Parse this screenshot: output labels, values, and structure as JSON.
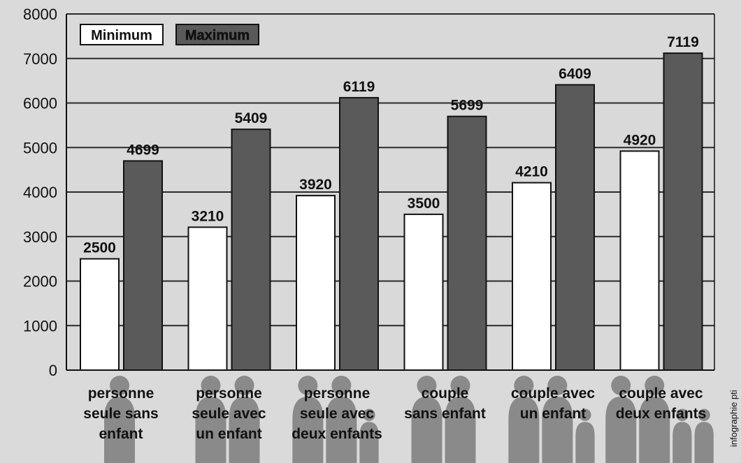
{
  "chart_data": {
    "type": "bar",
    "categories": [
      [
        "personne",
        "seule sans",
        "enfant"
      ],
      [
        "personne",
        "seule avec",
        "un enfant"
      ],
      [
        "personne",
        "seule avec",
        "deux enfants"
      ],
      [
        "couple",
        "sans enfant"
      ],
      [
        "couple avec",
        "un enfant"
      ],
      [
        "couple avec",
        "deux enfants"
      ]
    ],
    "series": [
      {
        "name": "Minimum",
        "values": [
          2500,
          3210,
          3920,
          3500,
          4210,
          4920
        ],
        "color": "#ffffff"
      },
      {
        "name": "Maximum",
        "values": [
          4699,
          5409,
          6119,
          5699,
          6409,
          7119
        ],
        "color": "#5a5a5a"
      }
    ],
    "ylim": [
      0,
      8000
    ],
    "yticks": [
      "0",
      "1000",
      "2000",
      "3000",
      "4000",
      "5000",
      "6000",
      "7000",
      "8000"
    ],
    "grid": true,
    "legend": "top-left",
    "value_labels": true,
    "credit": "infographie pti",
    "figure_counts": [
      1,
      2,
      3,
      2,
      3,
      4
    ]
  }
}
